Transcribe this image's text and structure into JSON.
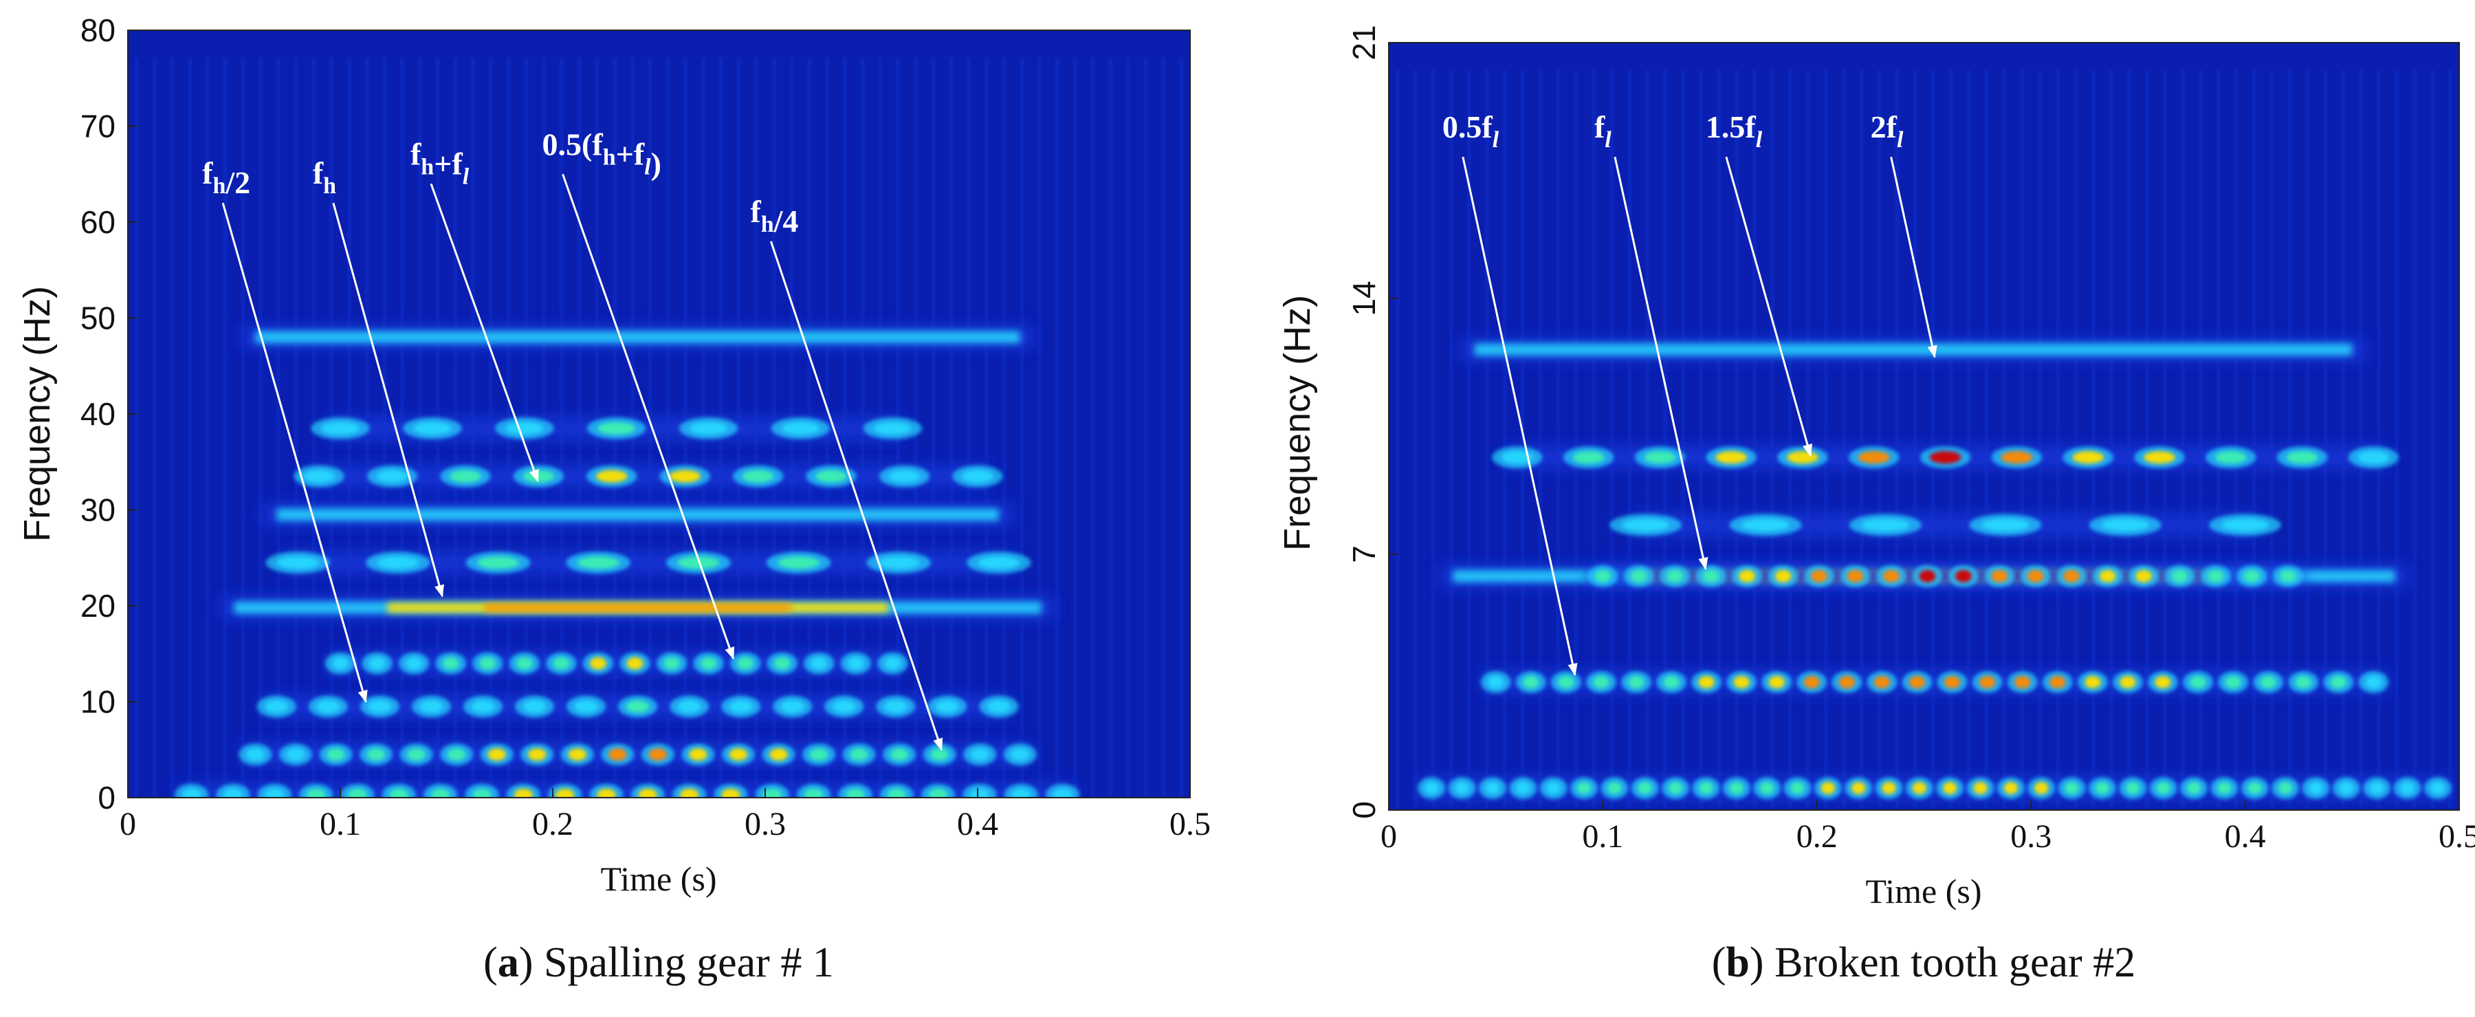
{
  "colors": {
    "background": "#0a1fb0",
    "low": "#1236d6",
    "cyan": "#28d8ff",
    "green": "#3ef0b0",
    "yellow": "#ffe000",
    "orange": "#ff8a00",
    "red": "#d40000",
    "annotation": "#ffffff"
  },
  "chart_data": [
    {
      "type": "heatmap",
      "subplot": "a",
      "title": "Spalling gear # 1",
      "xlabel": "Time (s)",
      "ylabel": "Frequency (Hz)",
      "xlim": [
        0,
        0.5
      ],
      "ylim": [
        0,
        80
      ],
      "xticks": [
        "0",
        "0.1",
        "0.2",
        "0.3",
        "0.4",
        "0.5"
      ],
      "xtick_values": [
        0,
        0.1,
        0.2,
        0.3,
        0.4,
        0.5
      ],
      "yticks": [
        "0",
        "10",
        "20",
        "30",
        "40",
        "50",
        "60",
        "70",
        "80"
      ],
      "ytick_values": [
        0,
        10,
        20,
        30,
        40,
        50,
        60,
        70,
        80
      ],
      "bands": [
        {
          "freq": 48,
          "t_start": 0.06,
          "t_end": 0.42,
          "intensity": 0.45,
          "pattern": "continuous",
          "count": 0
        },
        {
          "freq": 38.5,
          "t_start": 0.1,
          "t_end": 0.36,
          "intensity": 0.55,
          "pattern": "spots",
          "count": 7
        },
        {
          "freq": 33.5,
          "t_start": 0.09,
          "t_end": 0.4,
          "intensity": 0.7,
          "pattern": "spots",
          "count": 10
        },
        {
          "freq": 29.5,
          "t_start": 0.07,
          "t_end": 0.41,
          "intensity": 0.55,
          "pattern": "continuous",
          "count": 0
        },
        {
          "freq": 24.5,
          "t_start": 0.08,
          "t_end": 0.41,
          "intensity": 0.7,
          "pattern": "spots",
          "count": 8
        },
        {
          "freq": 19.8,
          "t_start": 0.05,
          "t_end": 0.43,
          "intensity": 0.85,
          "pattern": "continuous",
          "count": 0
        },
        {
          "freq": 14,
          "t_start": 0.1,
          "t_end": 0.36,
          "intensity": 0.7,
          "pattern": "spots",
          "count": 16
        },
        {
          "freq": 9.5,
          "t_start": 0.07,
          "t_end": 0.41,
          "intensity": 0.5,
          "pattern": "spots",
          "count": 15
        },
        {
          "freq": 4.5,
          "t_start": 0.06,
          "t_end": 0.42,
          "intensity": 0.8,
          "pattern": "spots",
          "count": 20
        },
        {
          "freq": 0.3,
          "t_start": 0.03,
          "t_end": 0.44,
          "intensity": 0.75,
          "pattern": "spots",
          "count": 22
        }
      ],
      "annotations": [
        {
          "text": "f_h/2",
          "label_t": 0.035,
          "label_f": 64,
          "target_t": 0.112,
          "target_f": 10
        },
        {
          "text": "f_h",
          "label_t": 0.087,
          "label_f": 64,
          "target_t": 0.148,
          "target_f": 21
        },
        {
          "text": "f_h+f_l",
          "label_t": 0.133,
          "label_f": 66,
          "target_t": 0.193,
          "target_f": 33
        },
        {
          "text": "0.5(f_h+f_l)",
          "label_t": 0.195,
          "label_f": 67,
          "target_t": 0.285,
          "target_f": 14.5
        },
        {
          "text": "f_h/4",
          "label_t": 0.293,
          "label_f": 60,
          "target_t": 0.383,
          "target_f": 5
        }
      ]
    },
    {
      "type": "heatmap",
      "subplot": "b",
      "title": "Broken tooth gear #2",
      "xlabel": "Time (s)",
      "ylabel": "Frequency (Hz)",
      "xlim": [
        0,
        0.5
      ],
      "ylim": [
        0,
        21
      ],
      "xticks": [
        "0",
        "0.1",
        "0.2",
        "0.3",
        "0.4",
        "0.5"
      ],
      "xtick_values": [
        0,
        0.1,
        0.2,
        0.3,
        0.4,
        0.5
      ],
      "yticks": [
        "0",
        "7",
        "14",
        "21"
      ],
      "ytick_values": [
        0,
        7,
        14,
        21
      ],
      "bands": [
        {
          "freq": 12.6,
          "t_start": 0.04,
          "t_end": 0.45,
          "intensity": 0.6,
          "pattern": "continuous",
          "count": 0
        },
        {
          "freq": 9.65,
          "t_start": 0.06,
          "t_end": 0.46,
          "intensity": 0.9,
          "pattern": "spots",
          "count": 13
        },
        {
          "freq": 7.8,
          "t_start": 0.12,
          "t_end": 0.4,
          "intensity": 0.35,
          "pattern": "spots",
          "count": 6
        },
        {
          "freq": 6.4,
          "t_start": 0.03,
          "t_end": 0.47,
          "intensity": 0.85,
          "pattern": "continuous",
          "count": 0
        },
        {
          "freq": 6.4,
          "t_start": 0.1,
          "t_end": 0.42,
          "intensity": 0.95,
          "pattern": "spots",
          "count": 20
        },
        {
          "freq": 3.5,
          "t_start": 0.05,
          "t_end": 0.46,
          "intensity": 0.9,
          "pattern": "spots",
          "count": 26
        },
        {
          "freq": 0.6,
          "t_start": 0.02,
          "t_end": 0.49,
          "intensity": 0.75,
          "pattern": "spots",
          "count": 34
        }
      ],
      "annotations": [
        {
          "text": "0.5f_l",
          "label_t": 0.025,
          "label_f": 18.4,
          "target_t": 0.087,
          "target_f": 3.7
        },
        {
          "text": "f_l",
          "label_t": 0.096,
          "label_f": 18.4,
          "target_t": 0.148,
          "target_f": 6.6
        },
        {
          "text": "1.5f_l",
          "label_t": 0.148,
          "label_f": 18.4,
          "target_t": 0.197,
          "target_f": 9.7
        },
        {
          "text": "2f_l",
          "label_t": 0.225,
          "label_f": 18.4,
          "target_t": 0.255,
          "target_f": 12.4
        }
      ]
    }
  ]
}
